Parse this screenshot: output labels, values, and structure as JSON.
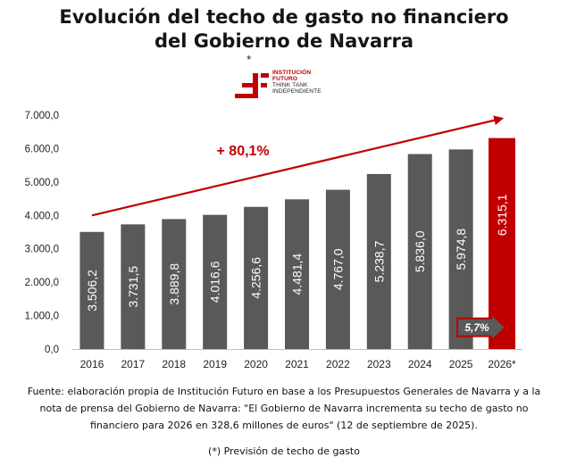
{
  "title_lines": [
    "Evolución del techo de gasto no financiero",
    "del Gobierno de Navarra"
  ],
  "logo": {
    "symbol": "*",
    "icon": "institucion-futuro-logo-icon",
    "lines": [
      "INSTITUCIÓN",
      "FUTURO",
      "THINK TANK",
      "INDEPENDIENTE"
    ]
  },
  "chart_data": {
    "type": "bar",
    "categories": [
      "2016",
      "2017",
      "2018",
      "2019",
      "2020",
      "2021",
      "2022",
      "2023",
      "2024",
      "2025",
      "2026*"
    ],
    "values": [
      3506.2,
      3731.5,
      3889.8,
      4016.6,
      4256.6,
      4481.4,
      4767.0,
      5238.7,
      5836.0,
      5974.8,
      6315.1
    ],
    "value_labels": [
      "3.506,2",
      "3.731,5",
      "3.889,8",
      "4.016,6",
      "4.256,6",
      "4.481,4",
      "4.767,0",
      "5.238,7",
      "5.836,0",
      "5.974,8",
      "6.315,1"
    ],
    "y_ticks": [
      0,
      1000,
      2000,
      3000,
      4000,
      5000,
      6000,
      7000
    ],
    "y_tick_labels": [
      "0,0",
      "1.000,0",
      "2.000,0",
      "3.000,0",
      "4.000,0",
      "5.000,0",
      "6.000,0",
      "7.000,0"
    ],
    "ylim": [
      0,
      7000
    ],
    "grid": false,
    "highlight_index": 10,
    "colors": {
      "bar": "#595959",
      "highlight": "#c00000",
      "label": "#ffffff",
      "arrow": "#c00000"
    },
    "trend_arrow": {
      "from": [
        0,
        4000
      ],
      "to": [
        10,
        6900
      ],
      "label": "+ 80,1%"
    },
    "badge": {
      "label": "5,7%",
      "index": 10,
      "value": 650
    }
  },
  "source_lines": [
    "Fuente: elaboración propia de Institución Futuro en base a los Presupuestos Generales de Navarra y a la",
    "nota de prensa del Gobierno de Navarra: \"El Gobierno de Navarra incrementa su techo de gasto no",
    "financiero para 2026 en 328,6 millones de euros\" (12 de septiembre de 2025)."
  ],
  "footnote": "(*) Previsión de techo de gasto"
}
